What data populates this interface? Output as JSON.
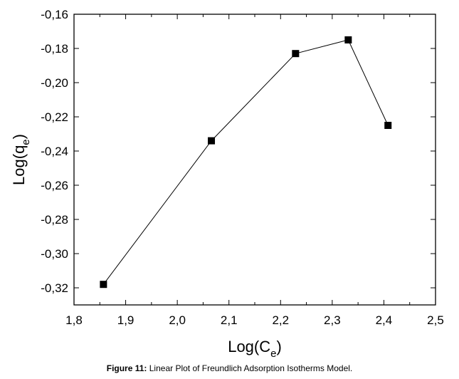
{
  "chart_data": {
    "type": "line",
    "xlabel": {
      "main": "Log(C",
      "sub": "e",
      "close": ")"
    },
    "ylabel": {
      "main": "Log(q",
      "sub": "e",
      "close": ")"
    },
    "xlim": [
      1.8,
      2.5
    ],
    "ylim": [
      -0.33,
      -0.16
    ],
    "x_ticks": [
      1.8,
      1.9,
      2.0,
      2.1,
      2.2,
      2.3,
      2.4,
      2.5
    ],
    "x_tick_labels": [
      "1,8",
      "1,9",
      "2,0",
      "2,1",
      "2,2",
      "2,3",
      "2,4",
      "2,5"
    ],
    "y_ticks": [
      -0.16,
      -0.18,
      -0.2,
      -0.22,
      -0.24,
      -0.26,
      -0.28,
      -0.3,
      -0.32
    ],
    "y_tick_labels": [
      "-0,16",
      "-0,18",
      "-0,20",
      "-0,22",
      "-0,24",
      "-0,26",
      "-0,28",
      "-0,30",
      "-0,32"
    ],
    "grid": false,
    "marker": "square",
    "series": [
      {
        "x": [
          1.857,
          2.066,
          2.229,
          2.331,
          2.408
        ],
        "y": [
          -0.318,
          -0.234,
          -0.183,
          -0.175,
          -0.225
        ]
      }
    ]
  },
  "caption": {
    "lead": "Figure 11:",
    "text": " Linear Plot of Freundlich Adsorption Isotherms Model."
  }
}
